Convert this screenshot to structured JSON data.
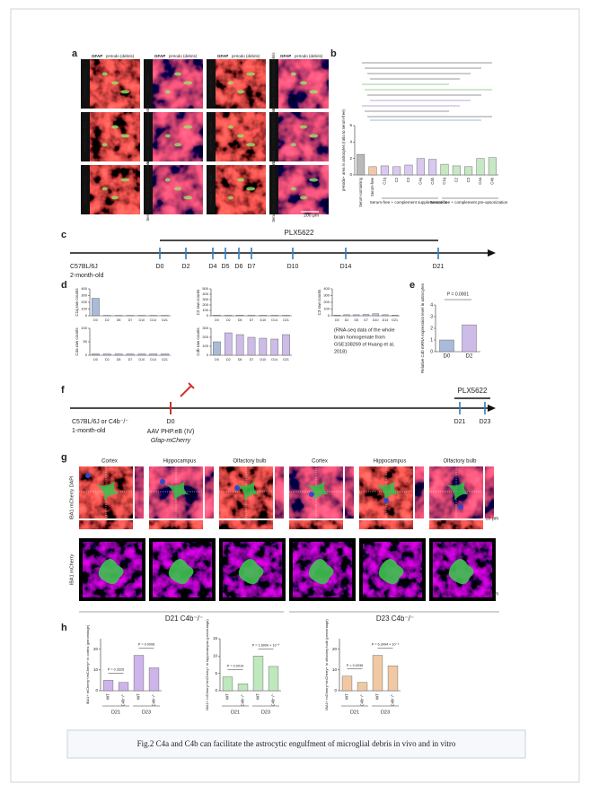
{
  "figure": {
    "a": {
      "label": "a",
      "gfap": "GFAP",
      "phrodo": "pHrodo (debris)",
      "scale": "200 μm",
      "images": [
        "Serum-containing",
        "Serum-free",
        "Serum-free + C3",
        "Serum-free + C3 preopsonized debris",
        "Serum-free + C1q",
        "Serum-free + C1q preopsonized debris",
        "Serum-free + C4a",
        "Serum-free + C4a preopsonized debris",
        "Serum-free + C2",
        "Serum-free + C2 preopsonized debris",
        "Serum-free + C4b",
        "Serum-free + C4b preopsonized debris"
      ]
    },
    "b": {
      "label": "b",
      "y_label": "pHrodo+ area in astrocytes (ratio to serum-free)",
      "categories": [
        "Serum-containing",
        "Serum-free",
        "C1q",
        "C2",
        "C3",
        "C4a",
        "C4b",
        "C1q",
        "C2",
        "C3",
        "C4a",
        "C4b"
      ],
      "values": [
        2.5,
        1.0,
        1.1,
        1.0,
        1.2,
        2.0,
        1.9,
        1.3,
        1.1,
        1.0,
        2.0,
        2.1
      ],
      "colors": [
        "#b9b9b9",
        "#f2c9a8",
        "#d9c8ef",
        "#d9c8ef",
        "#d9c8ef",
        "#d9c8ef",
        "#d9c8ef",
        "#c6e8c3",
        "#c6e8c3",
        "#c6e8c3",
        "#c6e8c3",
        "#c6e8c3"
      ],
      "ylim": [
        0,
        6
      ],
      "yticks": [
        0,
        2,
        4,
        6
      ],
      "group_supplementation": "Serum-free + complement supplementation",
      "group_preopsonization": "Serum-free + complement pre-opsonization"
    },
    "c": {
      "label": "c",
      "drug": "PLX5622",
      "strain": "C57BL/6J",
      "age": "2-month-old",
      "timepoints": [
        "D0",
        "D2",
        "D4",
        "D5",
        "D6",
        "D7",
        "D10",
        "D14",
        "D21"
      ]
    },
    "d": {
      "label": "d",
      "categories": [
        "D0",
        "D2",
        "D5",
        "D7",
        "D10",
        "D14",
        "D21"
      ],
      "charts": [
        {
          "y_label": "C1q raw counts",
          "values": [
            260,
            5,
            5,
            5,
            5,
            5,
            5
          ],
          "ylim": [
            0,
            400
          ],
          "yticks": [
            0,
            100,
            200,
            300,
            400
          ],
          "colors": [
            "#a9bbd8",
            "#cdbbe8",
            "#cdbbe8",
            "#cdbbe8",
            "#cdbbe8",
            "#cdbbe8",
            "#cdbbe8"
          ]
        },
        {
          "y_label": "C2 raw counts",
          "values": [
            10,
            8,
            10,
            8,
            8,
            8,
            8
          ],
          "ylim": [
            0,
            500
          ],
          "yticks": [
            0,
            100,
            200,
            300,
            400,
            500
          ],
          "colors": [
            "#a9bbd8",
            "#cdbbe8",
            "#cdbbe8",
            "#cdbbe8",
            "#cdbbe8",
            "#cdbbe8",
            "#cdbbe8"
          ]
        },
        {
          "y_label": "C3 raw counts",
          "values": [
            10,
            15,
            15,
            20,
            30,
            15,
            10
          ],
          "ylim": [
            0,
            400
          ],
          "yticks": [
            0,
            100,
            200,
            300,
            400
          ],
          "colors": [
            "#a9bbd8",
            "#cdbbe8",
            "#cdbbe8",
            "#cdbbe8",
            "#cdbbe8",
            "#cdbbe8",
            "#cdbbe8"
          ]
        },
        {
          "y_label": "C4a raw counts",
          "values": [
            5,
            5,
            5,
            5,
            5,
            5,
            5
          ],
          "ylim": [
            0,
            100
          ],
          "yticks": [
            0,
            50,
            100
          ],
          "colors": [
            "#a9bbd8",
            "#cdbbe8",
            "#cdbbe8",
            "#cdbbe8",
            "#cdbbe8",
            "#cdbbe8",
            "#cdbbe8"
          ]
        },
        {
          "y_label": "C4b raw counts",
          "values": [
            150,
            250,
            230,
            200,
            190,
            180,
            230
          ],
          "ylim": [
            0,
            300
          ],
          "yticks": [
            0,
            100,
            200,
            300
          ],
          "colors": [
            "#a9bbd8",
            "#cdbbe8",
            "#cdbbe8",
            "#cdbbe8",
            "#cdbbe8",
            "#cdbbe8",
            "#cdbbe8"
          ]
        }
      ],
      "note": [
        "(RNA-seq data of the whole",
        "brain homogenate from",
        "GSE108269 of Huang et al,",
        "2018)"
      ]
    },
    "e": {
      "label": "e",
      "y_label": "Relative C4b mRNA expression level in astrocytes",
      "p": "P = 0.0001",
      "categories": [
        "D0",
        "D2"
      ],
      "values": [
        1.0,
        2.3
      ],
      "colors": [
        "#a9bbd8",
        "#cdbbe8"
      ],
      "ylim": [
        0,
        4
      ],
      "yticks": [
        0,
        1,
        2,
        3,
        4
      ]
    },
    "f": {
      "label": "f",
      "strain": "C57BL/6J or C4b⁻/⁻",
      "age": "1-month-old",
      "d0": "D0",
      "virus": "AAV PHP.eB (IV)",
      "construct": "Gfap-mCherry",
      "drug": "PLX5622",
      "d21": "D21",
      "d23": "D23"
    },
    "g": {
      "label": "g",
      "columns": [
        "Cortex",
        "Hippocampus",
        "Olfactory bulb",
        "Cortex",
        "Hippocampus",
        "Olfactory bulb"
      ],
      "row1": "IBA1 mCherry DAPI",
      "row2": "IBA1 mCherry",
      "scale": "20 μm",
      "group1": "D21 C4b⁻/⁻",
      "group2": "D23 C4b⁻/⁻"
    },
    "h": {
      "label": "h",
      "categories": [
        "WT",
        "C4b⁻/⁻",
        "WT",
        "C4b⁻/⁻"
      ],
      "groups": [
        "D21",
        "D23"
      ],
      "charts": [
        {
          "y_label": "IBA1+ mCherry+/mCherry+ in cortex (percentage)",
          "values": [
            5,
            4,
            17,
            11
          ],
          "ylim": [
            0,
            25
          ],
          "yticks": [
            0,
            10,
            20
          ],
          "color": "#cdb4ea",
          "p": [
            "P = 0.3326",
            "P = 0.0008"
          ]
        },
        {
          "y_label": "IBA1+ mCherry+/mCherry+ in hippocampus (percentage)",
          "values": [
            4,
            2,
            10,
            7
          ],
          "ylim": [
            0,
            15
          ],
          "yticks": [
            0,
            5,
            10,
            15
          ],
          "color": "#bfe8bd",
          "p": [
            "P = 0.0019",
            "P = 1.6990 × 10⁻⁶"
          ]
        },
        {
          "y_label": "IBA1+ mCherry+/mCherry+ in olfactory bulb (percentage)",
          "values": [
            7,
            4,
            17,
            12
          ],
          "ylim": [
            0,
            25
          ],
          "yticks": [
            0,
            10,
            20
          ],
          "color": "#f0c9a4",
          "p": [
            "P = 0.0036",
            "P = 6.3094 × 10⁻⁴"
          ]
        }
      ]
    },
    "caption": "Fig.2 C4a and C4b can facilitate the astrocytic engulfment of microglial debris in vivo and in vitro"
  }
}
